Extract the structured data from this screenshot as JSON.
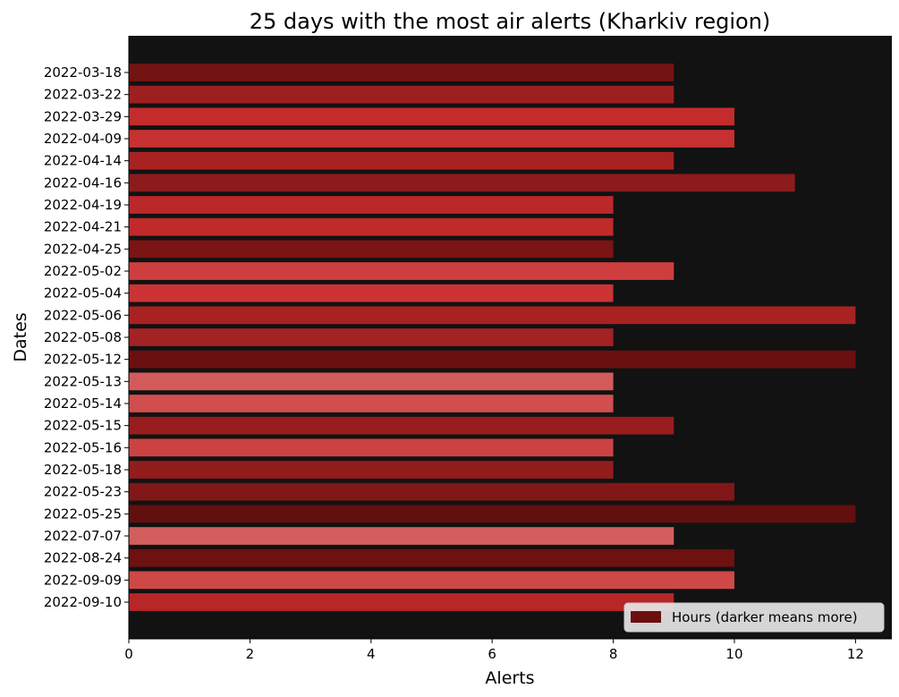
{
  "chart_data": {
    "type": "bar",
    "orientation": "horizontal",
    "title": "25 days with the most air alerts (Kharkiv region)",
    "xlabel": "Alerts",
    "ylabel": "Dates",
    "xlim": [
      0,
      12.6
    ],
    "xticks": [
      0,
      2,
      4,
      6,
      8,
      10,
      12
    ],
    "background_color": "#121212",
    "grid": false,
    "legend": {
      "label": "Hours (darker means more)",
      "position": "bottom-right",
      "swatch_color": "#6b1010"
    },
    "categories": [
      "2022-03-18",
      "2022-03-22",
      "2022-03-29",
      "2022-04-09",
      "2022-04-14",
      "2022-04-16",
      "2022-04-19",
      "2022-04-21",
      "2022-04-25",
      "2022-05-02",
      "2022-05-04",
      "2022-05-06",
      "2022-05-08",
      "2022-05-12",
      "2022-05-13",
      "2022-05-14",
      "2022-05-15",
      "2022-05-16",
      "2022-05-18",
      "2022-05-23",
      "2022-05-25",
      "2022-07-07",
      "2022-08-24",
      "2022-09-09",
      "2022-09-10"
    ],
    "values": [
      9,
      9,
      10,
      10,
      9,
      11,
      8,
      8,
      8,
      9,
      8,
      12,
      8,
      12,
      8,
      8,
      9,
      8,
      8,
      10,
      12,
      9,
      10,
      10,
      9
    ],
    "colors": [
      "#741313",
      "#9e1f20",
      "#c42b2c",
      "#c73030",
      "#a82222",
      "#8c1b1d",
      "#bb2829",
      "#c02a2b",
      "#7a1415",
      "#ce3e3f",
      "#cb3334",
      "#a92222",
      "#a32223",
      "#6a1010",
      "#d35a5a",
      "#d04e4e",
      "#981d1e",
      "#cc4242",
      "#931c1d",
      "#811717",
      "#620f0f",
      "#d35e5e",
      "#6d1111",
      "#cf4848",
      "#b82627"
    ]
  }
}
